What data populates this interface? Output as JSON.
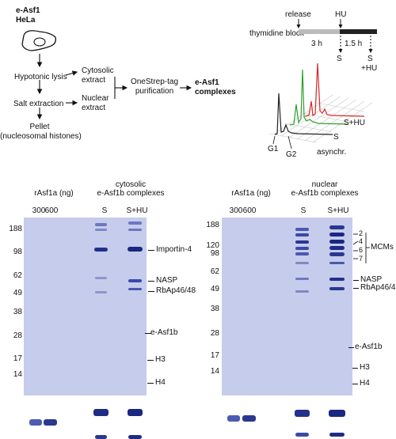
{
  "schematic": {
    "title_line1": "e-Asf1",
    "title_line2": "HeLa",
    "hypotonic_lysis": "Hypotonic lysis",
    "cytosolic_extract_l1": "Cytosolic",
    "cytosolic_extract_l2": "extract",
    "salt_extraction": "Salt extraction",
    "nuclear_extract_l1": "Nuclear",
    "nuclear_extract_l2": "extract",
    "pellet_l1": "Pellet",
    "pellet_l2": "(nucleosomal histones)",
    "onestrep_l1": "OneStrep-tag",
    "onestrep_l2": "purification",
    "complexes_l1": "e-Asf1",
    "complexes_l2": "complexes"
  },
  "timeline": {
    "release": "release",
    "hu": "HU",
    "thymidine_block": "thymidine block",
    "duration_1": "3 h",
    "duration_2": "1.5 h",
    "sample_s": "S",
    "sample_s_hu_l1": "S",
    "sample_s_hu_l2": "+HU"
  },
  "facs": {
    "label_s_hu": "S+HU",
    "label_s": "S",
    "label_g1": "G1",
    "label_g2": "G2",
    "label_asynchr": "asynchr.",
    "colors": {
      "s_hu": "#d62728",
      "s": "#2ca02c",
      "asynchr": "#222222"
    }
  },
  "gel_left": {
    "header_ref": "rAsf1a (ng)",
    "header_complex_l1": "cytosolic",
    "header_complex_l2": "e-Asf1b complexes",
    "lanes": [
      "300",
      "600",
      "S",
      "S+HU"
    ],
    "mw_markers": [
      "188",
      "98",
      "62",
      "49",
      "38",
      "28",
      "17",
      "14"
    ],
    "band_labels": [
      "Importin-4",
      "NASP",
      "RbAp46/48",
      "e-Asf1b",
      "H3",
      "H4"
    ]
  },
  "gel_right": {
    "header_ref": "rAsf1a (ng)",
    "header_complex_l1": "nuclear",
    "header_complex_l2": "e-Asf1b complexes",
    "lanes": [
      "300",
      "600",
      "S",
      "S+HU"
    ],
    "mw_markers": [
      "188",
      "120",
      "98",
      "62",
      "49",
      "38",
      "28",
      "17",
      "14"
    ],
    "mcm_numbers": [
      "2",
      "4",
      "6",
      "7"
    ],
    "mcm_label": "MCMs",
    "band_labels": [
      "NASP",
      "RbAp46/48",
      "e-Asf1b",
      "H3",
      "H4"
    ]
  },
  "colors": {
    "gel": "#c6ccec",
    "band": "#23318a"
  }
}
